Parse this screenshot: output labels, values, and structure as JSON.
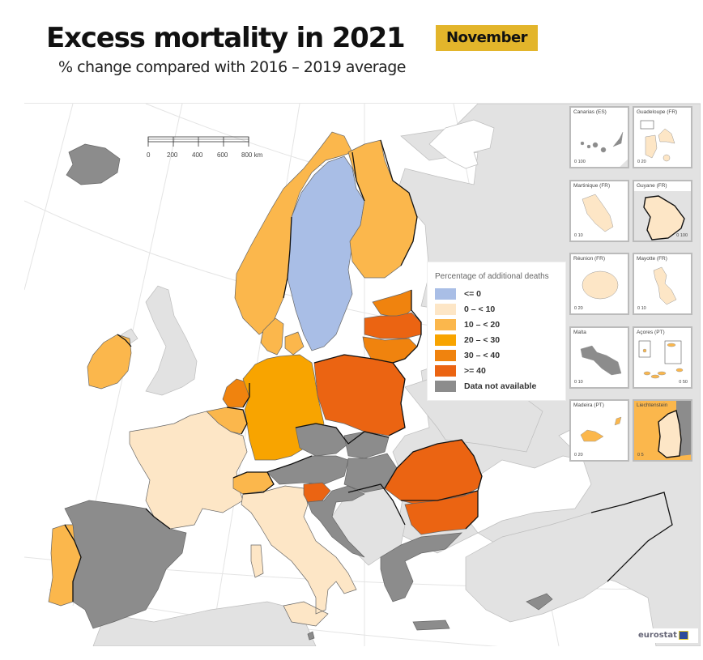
{
  "header": {
    "title": "Excess mortality in 2021",
    "month_badge": "November",
    "subtitle": "% change compared with 2016 – 2019 average"
  },
  "colors": {
    "le_0": "#a9bee6",
    "c0_10": "#fde6c6",
    "c10_20": "#fbb74c",
    "c20_30": "#f8a400",
    "c30_40": "#f0830e",
    "ge_40": "#eb6412",
    "not_available": "#8c8c8c",
    "non_eu": "#e2e2e2",
    "badge": "#e3b52b"
  },
  "legend": {
    "title": "Percentage of additional deaths",
    "items": [
      {
        "label": "<= 0",
        "color_key": "le_0"
      },
      {
        "label": "0 – < 10",
        "color_key": "c0_10"
      },
      {
        "label": "10 – < 20",
        "color_key": "c10_20"
      },
      {
        "label": "20 – < 30",
        "color_key": "c20_30"
      },
      {
        "label": "30 – < 40",
        "color_key": "c30_40"
      },
      {
        "label": ">= 40",
        "color_key": "ge_40"
      },
      {
        "label": "Data not available",
        "color_key": "not_available"
      }
    ]
  },
  "scalebar": {
    "ticks": [
      "0",
      "200",
      "400",
      "600",
      "800 km"
    ]
  },
  "countries": [
    {
      "name": "Iceland",
      "class": "not_available"
    },
    {
      "name": "Norway",
      "class": "c10_20"
    },
    {
      "name": "Sweden",
      "class": "le_0"
    },
    {
      "name": "Finland",
      "class": "c10_20"
    },
    {
      "name": "Estonia",
      "class": "c30_40"
    },
    {
      "name": "Latvia",
      "class": "ge_40"
    },
    {
      "name": "Lithuania",
      "class": "c30_40"
    },
    {
      "name": "Denmark",
      "class": "c10_20"
    },
    {
      "name": "Ireland",
      "class": "c10_20"
    },
    {
      "name": "Netherlands",
      "class": "c30_40"
    },
    {
      "name": "Belgium",
      "class": "c10_20"
    },
    {
      "name": "Luxembourg",
      "class": "c10_20"
    },
    {
      "name": "Germany",
      "class": "c20_30"
    },
    {
      "name": "Poland",
      "class": "ge_40"
    },
    {
      "name": "France",
      "class": "c0_10"
    },
    {
      "name": "Switzerland",
      "class": "c10_20"
    },
    {
      "name": "Italy",
      "class": "c0_10"
    },
    {
      "name": "Czechia",
      "class": "not_available"
    },
    {
      "name": "Slovakia",
      "class": "not_available"
    },
    {
      "name": "Austria",
      "class": "not_available"
    },
    {
      "name": "Hungary",
      "class": "not_available"
    },
    {
      "name": "Slovenia",
      "class": "ge_40"
    },
    {
      "name": "Croatia",
      "class": "not_available"
    },
    {
      "name": "Romania",
      "class": "ge_40"
    },
    {
      "name": "Bulgaria",
      "class": "ge_40"
    },
    {
      "name": "Greece",
      "class": "not_available"
    },
    {
      "name": "Cyprus",
      "class": "not_available"
    },
    {
      "name": "Spain",
      "class": "not_available"
    },
    {
      "name": "Portugal",
      "class": "c10_20"
    },
    {
      "name": "Malta",
      "class": "not_available"
    }
  ],
  "insets": [
    {
      "label": "Canarias (ES)",
      "scale": "0  100",
      "class": "not_available"
    },
    {
      "label": "Guadeloupe (FR)",
      "scale": "0  20",
      "class": "c0_10"
    },
    {
      "label": "Martinique (FR)",
      "scale": "0  10",
      "class": "c0_10"
    },
    {
      "label": "Guyane (FR)",
      "scale": "0  100",
      "class": "c0_10"
    },
    {
      "label": "Réunion (FR)",
      "scale": "0  20",
      "class": "c0_10"
    },
    {
      "label": "Mayotte (FR)",
      "scale": "0  10",
      "class": "c0_10"
    },
    {
      "label": "Malta",
      "scale": "0  10",
      "class": "not_available"
    },
    {
      "label": "Açores (PT)",
      "scale": "0  50",
      "class": "c10_20"
    },
    {
      "label": "Madeira (PT)",
      "scale": "0  20",
      "class": "c10_20"
    },
    {
      "label": "Liechtenstein",
      "scale": "0  5",
      "class": "c0_10"
    }
  ],
  "logo": {
    "text": "eurostat"
  }
}
